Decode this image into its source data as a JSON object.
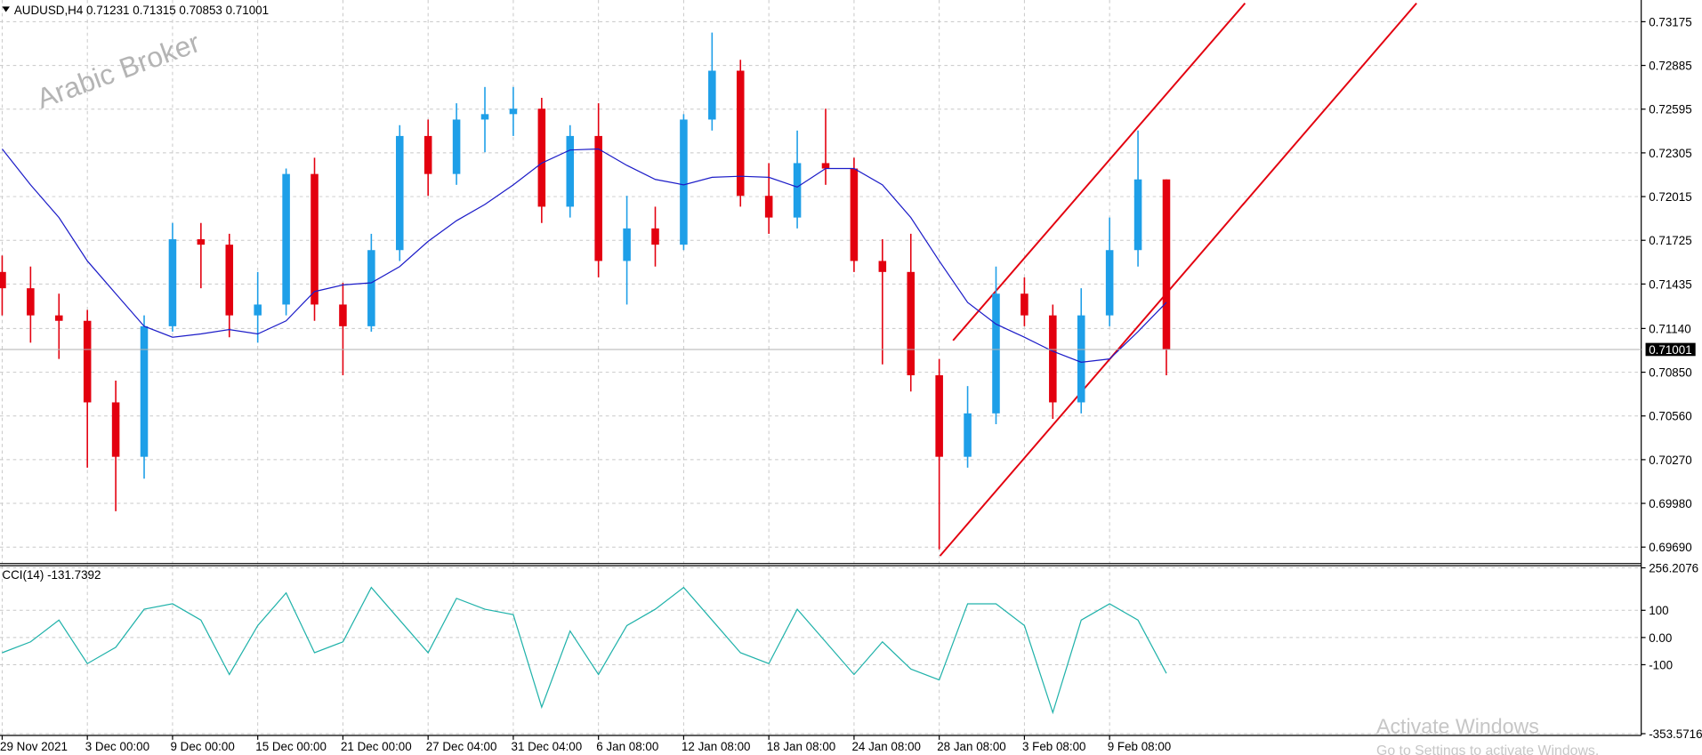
{
  "chart_data": [
    {
      "type": "candlestick",
      "header": {
        "symbol": "AUDUSD,H4",
        "values": [
          0.71231,
          0.71315,
          0.70853,
          0.71001
        ]
      },
      "watermark": "Arabic Broker",
      "categories": [
        "29 Nov 2021",
        null,
        null,
        "3 Dec 00:00",
        null,
        null,
        "9 Dec 00:00",
        null,
        null,
        "15 Dec 00:00",
        null,
        null,
        "21 Dec 00:00",
        null,
        null,
        "27 Dec 04:00",
        null,
        null,
        "31 Dec 04:00",
        null,
        null,
        "6 Jan 08:00",
        null,
        null,
        "12 Jan 08:00",
        null,
        null,
        "18 Jan 08:00",
        null,
        null,
        "24 Jan 08:00",
        null,
        null,
        "28 Jan 08:00",
        null,
        null,
        "3 Feb 08:00",
        null,
        null,
        "9 Feb 08:00",
        null,
        null
      ],
      "open": [
        0.71515,
        0.71407,
        0.71227,
        0.71191,
        0.7065,
        0.70289,
        0.71155,
        0.71732,
        0.71696,
        0.71227,
        0.71299,
        0.72165,
        0.71299,
        0.71155,
        0.7166,
        0.72417,
        0.72165,
        0.72526,
        0.72562,
        0.72598,
        0.71948,
        0.72417,
        0.71588,
        0.71804,
        0.71696,
        0.72526,
        0.7285,
        0.7202,
        0.71876,
        0.72237,
        0.72201,
        0.71588,
        0.71515,
        0.7083,
        0.70289,
        0.70577,
        0.71371,
        0.71227,
        0.7065,
        0.71227,
        0.7166,
        0.72129
      ],
      "high": [
        0.71624,
        0.71551,
        0.71371,
        0.71263,
        0.70794,
        0.71227,
        0.7184,
        0.7184,
        0.71768,
        0.71515,
        0.72201,
        0.72273,
        0.71443,
        0.71768,
        0.72489,
        0.72526,
        0.72634,
        0.72742,
        0.72742,
        0.7267,
        0.72489,
        0.72634,
        0.7202,
        0.71948,
        0.72562,
        0.73103,
        0.72922,
        0.72237,
        0.72453,
        0.72598,
        0.72273,
        0.71732,
        0.71768,
        0.70938,
        0.70758,
        0.71551,
        0.71479,
        0.71299,
        0.71407,
        0.71876,
        0.72453,
        0.72129
      ],
      "low": [
        0.71227,
        0.71046,
        0.70938,
        0.70217,
        0.69928,
        0.70144,
        0.71119,
        0.71407,
        0.71082,
        0.71046,
        0.71227,
        0.71191,
        0.7083,
        0.71119,
        0.71588,
        0.7202,
        0.72093,
        0.72309,
        0.72417,
        0.7184,
        0.71876,
        0.71479,
        0.71299,
        0.71551,
        0.7166,
        0.72453,
        0.71948,
        0.71768,
        0.71804,
        0.72093,
        0.71515,
        0.70902,
        0.70722,
        0.69675,
        0.70217,
        0.70505,
        0.71155,
        0.70541,
        0.70577,
        0.71155,
        0.71551,
        0.7083
      ],
      "close": [
        0.71407,
        0.71227,
        0.71191,
        0.7065,
        0.70289,
        0.71155,
        0.71732,
        0.71696,
        0.71227,
        0.71299,
        0.72165,
        0.71299,
        0.71155,
        0.7166,
        0.72417,
        0.72165,
        0.72526,
        0.72562,
        0.72598,
        0.71948,
        0.72417,
        0.71588,
        0.71804,
        0.71696,
        0.72526,
        0.7285,
        0.7202,
        0.71876,
        0.72237,
        0.72201,
        0.71588,
        0.71515,
        0.7083,
        0.70289,
        0.70577,
        0.71371,
        0.71227,
        0.7065,
        0.71227,
        0.7166,
        0.72129,
        0.71001
      ],
      "up_color": "#1e9fe8",
      "down_color": "#e3000f",
      "ma": {
        "color": "#1c1cc8",
        "values": [
          0.72331,
          0.72093,
          0.71876,
          0.71588,
          0.71371,
          0.71155,
          0.71082,
          0.71104,
          0.71133,
          0.71104,
          0.71191,
          0.71385,
          0.71429,
          0.71443,
          0.71551,
          0.71718,
          0.71855,
          0.71963,
          0.72093,
          0.72237,
          0.72324,
          0.72331,
          0.72222,
          0.72129,
          0.72093,
          0.72143,
          0.7215,
          0.72143,
          0.72078,
          0.72201,
          0.72201,
          0.72093,
          0.71876,
          0.71588,
          0.71313,
          0.71169,
          0.71082,
          0.70989,
          0.70916,
          0.70938,
          0.71119,
          0.71313
        ]
      },
      "ylim": [
        0.69581,
        0.73319
      ],
      "yticks": [
        0.73175,
        0.72885,
        0.72595,
        0.72305,
        0.72015,
        0.71725,
        0.71435,
        {
          "value": 0.7114,
          "label": "0.71140"
        },
        {
          "value": 0.7085,
          "label": "0.70850"
        },
        {
          "value": 0.7056,
          "label": "0.70560"
        },
        {
          "value": 0.7027,
          "label": "0.70270"
        },
        {
          "value": 0.6998,
          "label": "0.69980"
        },
        {
          "value": 0.6969,
          "label": "0.69690"
        }
      ],
      "grid": true
    },
    {
      "type": "line",
      "name": "CCI(14)",
      "color": "#20b2aa",
      "values": [
        -56,
        -16,
        64,
        -96,
        -36,
        104,
        124,
        64,
        -136,
        44,
        164,
        -56,
        -16,
        184,
        64,
        -56,
        144,
        104,
        84,
        -256,
        24,
        -136,
        44,
        104,
        184,
        64,
        -56,
        -96,
        104,
        -16,
        -136,
        -16,
        -116,
        -156,
        124,
        124,
        44,
        -276,
        64,
        124,
        64,
        -131.7392
      ],
      "ylim": [
        -360,
        264
      ],
      "yticks": [
        256.2076,
        100,
        {
          "value": 0,
          "label": "0.00"
        },
        -100,
        -353.5716
      ],
      "grid": true
    }
  ],
  "overlay": {
    "title": "Activate Windows",
    "text": "Go to Settings to activate Windows."
  }
}
